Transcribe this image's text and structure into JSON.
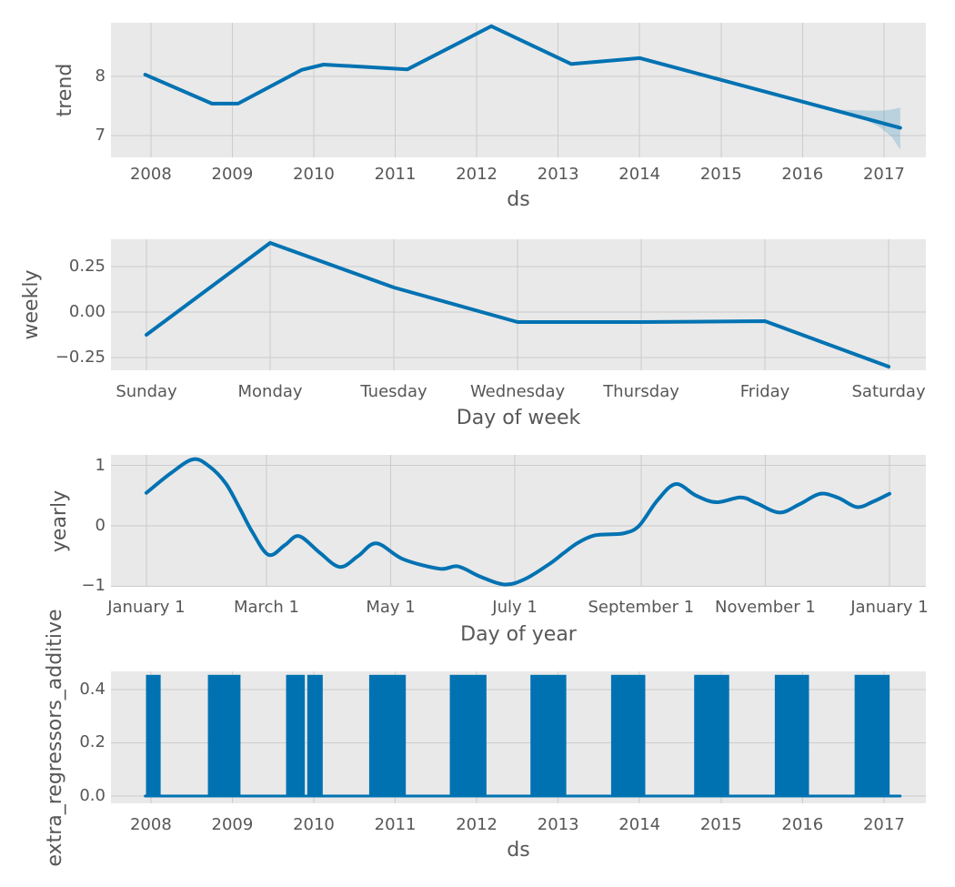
{
  "figure_colors": {
    "background": "#ffffff",
    "plot_background": "#e9e9e9",
    "grid": "#cccccc",
    "line": "#0072B2",
    "band_fill": "rgba(0,114,178,0.2)",
    "text": "#575757"
  },
  "chart_data": [
    {
      "type": "line",
      "title": "",
      "ylabel": "trend",
      "xlabel": "ds",
      "grid": true,
      "xlim": [
        2007.51,
        2017.515
      ],
      "ylim": [
        6.63,
        8.908
      ],
      "xticks": [
        {
          "v": 2008,
          "label": "2008"
        },
        {
          "v": 2009,
          "label": "2009"
        },
        {
          "v": 2010,
          "label": "2010"
        },
        {
          "v": 2011,
          "label": "2011"
        },
        {
          "v": 2012,
          "label": "2012"
        },
        {
          "v": 2013,
          "label": "2013"
        },
        {
          "v": 2014,
          "label": "2014"
        },
        {
          "v": 2015,
          "label": "2015"
        },
        {
          "v": 2016,
          "label": "2016"
        },
        {
          "v": 2017,
          "label": "2017"
        }
      ],
      "yticks": [
        {
          "v": 8,
          "label": "8"
        },
        {
          "v": 7,
          "label": "7"
        }
      ],
      "smooth": false,
      "line_width": 4,
      "points": [
        [
          2007.93,
          8.03
        ],
        [
          2008.75,
          7.54
        ],
        [
          2009.07,
          7.54
        ],
        [
          2009.85,
          8.11
        ],
        [
          2010.12,
          8.2
        ],
        [
          2011.15,
          8.12
        ],
        [
          2012.18,
          8.85
        ],
        [
          2013.16,
          8.21
        ],
        [
          2014.0,
          8.31
        ],
        [
          2017.2,
          7.13
        ]
      ],
      "band": {
        "upper": [
          [
            2016.35,
            7.44
          ],
          [
            2016.6,
            7.43
          ],
          [
            2016.9,
            7.42
          ],
          [
            2017.05,
            7.43
          ],
          [
            2017.2,
            7.47
          ]
        ],
        "lower": [
          [
            2016.35,
            7.44
          ],
          [
            2016.55,
            7.37
          ],
          [
            2016.75,
            7.28
          ],
          [
            2016.95,
            7.14
          ],
          [
            2017.1,
            6.97
          ],
          [
            2017.2,
            6.76
          ]
        ]
      }
    },
    {
      "type": "line",
      "title": "",
      "ylabel": "weekly",
      "xlabel": "Day of week",
      "grid": true,
      "xlim": [
        -0.287,
        6.301
      ],
      "ylim": [
        -0.32,
        0.4
      ],
      "xticks": [
        {
          "v": 0,
          "label": "Sunday"
        },
        {
          "v": 1,
          "label": "Monday"
        },
        {
          "v": 2,
          "label": "Tuesday"
        },
        {
          "v": 3,
          "label": "Wednesday"
        },
        {
          "v": 4,
          "label": "Thursday"
        },
        {
          "v": 5,
          "label": "Friday"
        },
        {
          "v": 6,
          "label": "Saturday"
        }
      ],
      "yticks": [
        {
          "v": 0.25,
          "label": "0.25"
        },
        {
          "v": 0.0,
          "label": "0.00"
        },
        {
          "v": -0.25,
          "label": "−0.25"
        }
      ],
      "smooth": false,
      "line_width": 4,
      "points": [
        [
          0,
          -0.125
        ],
        [
          1,
          0.38
        ],
        [
          2,
          0.135
        ],
        [
          3,
          -0.055
        ],
        [
          4,
          -0.055
        ],
        [
          5,
          -0.05
        ],
        [
          6,
          -0.3
        ]
      ]
    },
    {
      "type": "line",
      "title": "",
      "ylabel": "yearly",
      "xlabel": "Day of year",
      "grid": true,
      "xlim": [
        -17.4,
        382.9
      ],
      "ylim": [
        -1.008,
        1.173
      ],
      "xticks": [
        {
          "v": 0,
          "label": "January 1"
        },
        {
          "v": 59,
          "label": "March 1"
        },
        {
          "v": 120,
          "label": "May 1"
        },
        {
          "v": 181,
          "label": "July 1"
        },
        {
          "v": 243,
          "label": "September 1"
        },
        {
          "v": 304,
          "label": "November 1"
        },
        {
          "v": 365,
          "label": "January 1"
        }
      ],
      "yticks": [
        {
          "v": 1,
          "label": "1"
        },
        {
          "v": 0,
          "label": "0"
        },
        {
          "v": -1,
          "label": "−1"
        }
      ],
      "smooth": true,
      "line_width": 4,
      "points": [
        [
          0,
          0.545
        ],
        [
          12,
          0.87
        ],
        [
          23,
          1.1
        ],
        [
          31,
          0.98
        ],
        [
          39,
          0.7
        ],
        [
          46,
          0.28
        ],
        [
          52,
          -0.1
        ],
        [
          60,
          -0.48
        ],
        [
          68,
          -0.32
        ],
        [
          75,
          -0.17
        ],
        [
          85,
          -0.44
        ],
        [
          95,
          -0.68
        ],
        [
          104,
          -0.5
        ],
        [
          113,
          -0.29
        ],
        [
          126,
          -0.55
        ],
        [
          144,
          -0.71
        ],
        [
          153,
          -0.67
        ],
        [
          164,
          -0.84
        ],
        [
          176,
          -0.97
        ],
        [
          186,
          -0.88
        ],
        [
          198,
          -0.63
        ],
        [
          205,
          -0.45
        ],
        [
          212,
          -0.28
        ],
        [
          220,
          -0.16
        ],
        [
          228,
          -0.14
        ],
        [
          235,
          -0.12
        ],
        [
          242,
          0.0
        ],
        [
          251,
          0.42
        ],
        [
          260,
          0.69
        ],
        [
          270,
          0.5
        ],
        [
          280,
          0.39
        ],
        [
          292,
          0.47
        ],
        [
          300,
          0.37
        ],
        [
          311,
          0.22
        ],
        [
          321,
          0.36
        ],
        [
          331,
          0.53
        ],
        [
          340,
          0.46
        ],
        [
          349,
          0.31
        ],
        [
          357,
          0.4
        ],
        [
          365,
          0.53
        ]
      ]
    },
    {
      "type": "bars",
      "title": "",
      "ylabel": "extra_regressors_additive",
      "xlabel": "ds",
      "grid": true,
      "xlim": [
        2007.51,
        2017.515
      ],
      "ylim": [
        -0.0274,
        0.468
      ],
      "xticks": [
        {
          "v": 2008,
          "label": "2008"
        },
        {
          "v": 2009,
          "label": "2009"
        },
        {
          "v": 2010,
          "label": "2010"
        },
        {
          "v": 2011,
          "label": "2011"
        },
        {
          "v": 2012,
          "label": "2012"
        },
        {
          "v": 2013,
          "label": "2013"
        },
        {
          "v": 2014,
          "label": "2014"
        },
        {
          "v": 2015,
          "label": "2015"
        },
        {
          "v": 2016,
          "label": "2016"
        },
        {
          "v": 2017,
          "label": "2017"
        }
      ],
      "yticks": [
        {
          "v": 0.4,
          "label": "0.4"
        },
        {
          "v": 0.2,
          "label": "0.2"
        },
        {
          "v": 0.0,
          "label": "0.0"
        }
      ],
      "bar_height": 0.455,
      "bars": [
        [
          2007.94,
          2008.12
        ],
        [
          2008.7,
          2009.1
        ],
        [
          2009.66,
          2009.89
        ],
        [
          2009.92,
          2010.11
        ],
        [
          2010.68,
          2011.13
        ],
        [
          2011.67,
          2012.12
        ],
        [
          2012.66,
          2013.1
        ],
        [
          2013.65,
          2014.07
        ],
        [
          2014.67,
          2015.1
        ],
        [
          2015.66,
          2016.08
        ],
        [
          2016.64,
          2017.07
        ]
      ],
      "smooth": false,
      "line_width": 3,
      "points": [
        [
          2007.93,
          0
        ],
        [
          2017.2,
          0
        ]
      ]
    }
  ]
}
